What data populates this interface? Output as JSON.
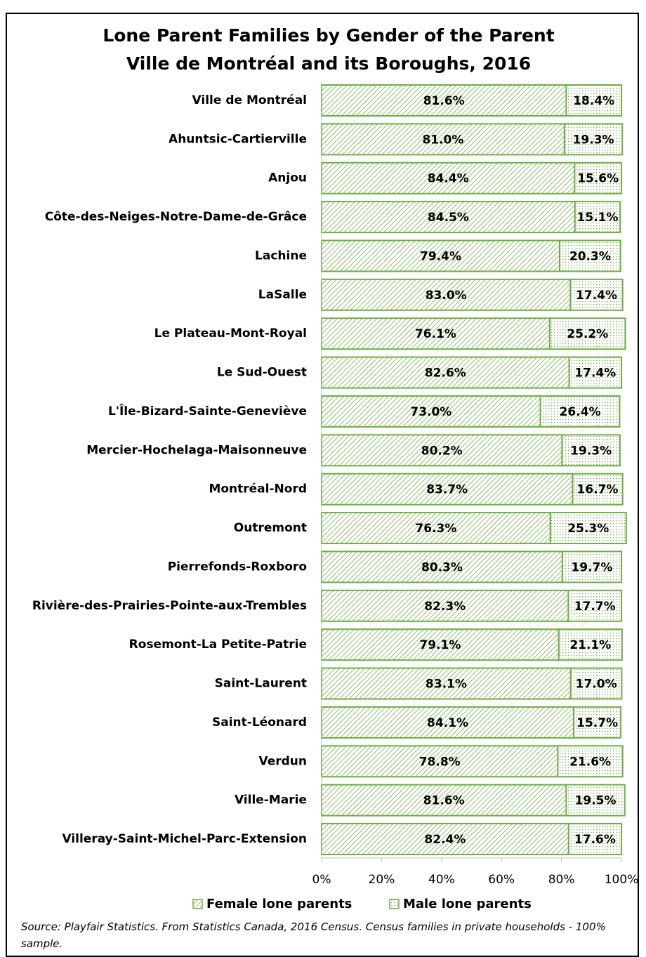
{
  "chart_data": {
    "type": "bar",
    "orientation": "horizontal",
    "stacked": true,
    "title": "Lone Parent Families by Gender of the Parent",
    "subtitle": "Ville de Montréal and its Boroughs, 2016",
    "categories": [
      "Ville de Montréal",
      "Ahuntsic-Cartierville",
      "Anjou",
      "Côte-des-Neiges-Notre-Dame-de-Grâce",
      "Lachine",
      "LaSalle",
      "Le Plateau-Mont-Royal",
      "Le Sud-Ouest",
      "L'Île-Bizard-Sainte-Geneviève",
      "Mercier-Hochelaga-Maisonneuve",
      "Montréal-Nord",
      "Outremont",
      "Pierrefonds-Roxboro",
      "Rivière-des-Prairies-Pointe-aux-Trembles",
      "Rosemont-La Petite-Patrie",
      "Saint-Laurent",
      "Saint-Léonard",
      "Verdun",
      "Ville-Marie",
      "Villeray-Saint-Michel-Parc-Extension"
    ],
    "series": [
      {
        "name": "Female lone parents",
        "color": "#70ad47",
        "values": [
          81.6,
          81.0,
          84.4,
          84.5,
          79.4,
          83.0,
          76.1,
          82.6,
          73.0,
          80.2,
          83.7,
          76.3,
          80.3,
          82.3,
          79.1,
          83.1,
          84.1,
          78.8,
          81.6,
          82.4
        ],
        "value_labels": [
          "81.6%",
          "81.0%",
          "84.4%",
          "84.5%",
          "79.4%",
          "83.0%",
          "76.1%",
          "82.6%",
          "73.0%",
          "80.2%",
          "83.7%",
          "76.3%",
          "80.3%",
          "82.3%",
          "79.1%",
          "83.1%",
          "84.1%",
          "78.8%",
          "81.6%",
          "82.4%"
        ]
      },
      {
        "name": "Male lone parents",
        "color": "#70ad47",
        "values": [
          18.4,
          19.3,
          15.6,
          15.1,
          20.3,
          17.4,
          25.2,
          17.4,
          26.4,
          19.3,
          16.7,
          25.3,
          19.7,
          17.7,
          21.1,
          17.0,
          15.7,
          21.6,
          19.5,
          17.6
        ],
        "value_labels": [
          "18.4%",
          "19.3%",
          "15.6%",
          "15.1%",
          "20.3%",
          "17.4%",
          "25.2%",
          "17.4%",
          "26.4%",
          "19.3%",
          "16.7%",
          "25.3%",
          "19.7%",
          "17.7%",
          "21.1%",
          "17.0%",
          "15.7%",
          "21.6%",
          "19.5%",
          "17.6%"
        ]
      }
    ],
    "xlim": [
      0,
      100
    ],
    "xticks": [
      {
        "value": 0,
        "label": "0%"
      },
      {
        "value": 20,
        "label": "20%"
      },
      {
        "value": 40,
        "label": "40%"
      },
      {
        "value": 60,
        "label": "60%"
      },
      {
        "value": 80,
        "label": "80%"
      },
      {
        "value": 100,
        "label": "100%"
      }
    ],
    "legend": "bottom",
    "source": "Source: Playfair Statistics. From Statistics Canada, 2016 Census. Census families in private households - 100% sample."
  }
}
